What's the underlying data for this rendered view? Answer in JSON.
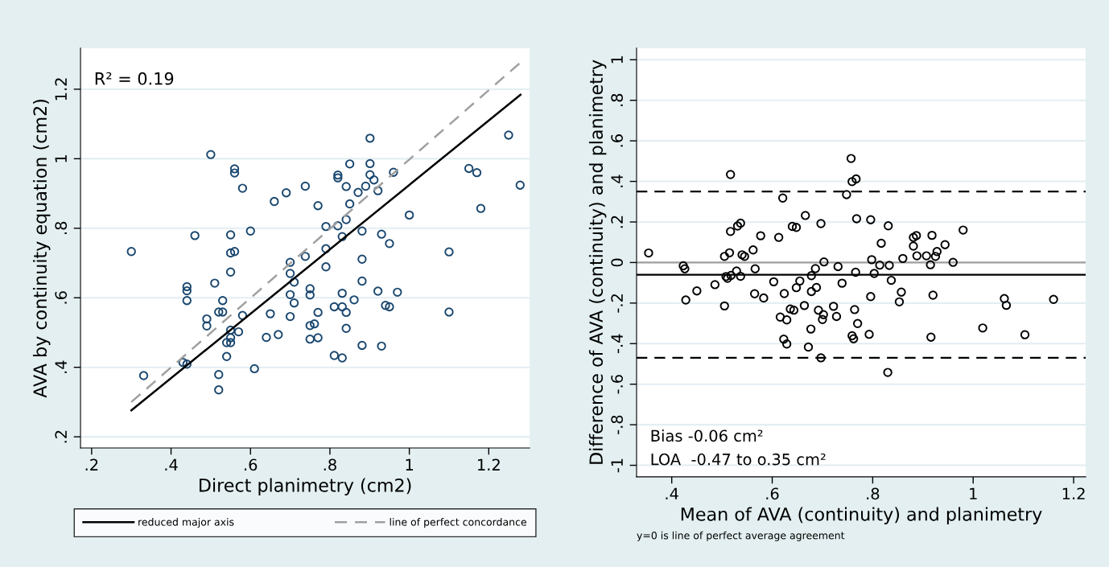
{
  "chart_data": [
    {
      "type": "scatter",
      "xlabel": "Direct planimetry (cm2)",
      "ylabel": "AVA by continuity equation (cm2)",
      "annotations": [
        "R² = 0.19"
      ],
      "xlim": [
        0.172,
        1.303
      ],
      "ylim": [
        0.168,
        1.318
      ],
      "xticks": [
        {
          "value": 0.2,
          "label": ".2"
        },
        {
          "value": 0.4,
          "label": ".4"
        },
        {
          "value": 0.6,
          "label": ".6"
        },
        {
          "value": 0.8,
          "label": ".8"
        },
        {
          "value": 1,
          "label": "1"
        },
        {
          "value": 1.2,
          "label": "1.2"
        }
      ],
      "yticks": [
        {
          "value": 0.2,
          "label": ".2"
        },
        {
          "value": 0.4,
          "label": ".4"
        },
        {
          "value": 0.6,
          "label": ".6"
        },
        {
          "value": 0.8,
          "label": ".8"
        },
        {
          "value": 1,
          "label": "1"
        },
        {
          "value": 1.2,
          "label": "1.2"
        }
      ],
      "grid": "y",
      "legend": "bottom",
      "series": [
        {
          "type": "scatter",
          "marker": "circle",
          "color": "#1a476f",
          "x": [
            0.3,
            0.331,
            0.43,
            0.44,
            0.44,
            0.44,
            0.44,
            0.46,
            0.49,
            0.49,
            0.5,
            0.51,
            0.52,
            0.52,
            0.52,
            0.53,
            0.53,
            0.54,
            0.54,
            0.55,
            0.55,
            0.55,
            0.55,
            0.55,
            0.55,
            0.56,
            0.56,
            0.56,
            0.57,
            0.58,
            0.58,
            0.6,
            0.61,
            0.64,
            0.65,
            0.66,
            0.67,
            0.69,
            0.7,
            0.7,
            0.71,
            0.7,
            0.71,
            0.7,
            0.738,
            0.738,
            0.75,
            0.75,
            0.75,
            0.75,
            0.761,
            0.77,
            0.77,
            0.77,
            0.79,
            0.79,
            0.79,
            0.811,
            0.811,
            0.82,
            0.82,
            0.82,
            0.831,
            0.831,
            0.831,
            0.831,
            0.841,
            0.841,
            0.841,
            0.841,
            0.85,
            0.85,
            0.861,
            0.871,
            0.881,
            0.881,
            0.881,
            0.881,
            0.89,
            0.901,
            0.901,
            0.901,
            0.911,
            0.921,
            0.921,
            0.93,
            0.93,
            0.94,
            0.95,
            0.95,
            0.96,
            0.97,
            1.0,
            1.1,
            1.1,
            1.15,
            1.17,
            1.18,
            1.25,
            1.279
          ],
          "values": [
            0.733,
            0.376,
            0.414,
            0.409,
            0.632,
            0.62,
            0.592,
            0.779,
            0.539,
            0.519,
            1.012,
            0.642,
            0.559,
            0.379,
            0.335,
            0.592,
            0.559,
            0.431,
            0.471,
            0.507,
            0.485,
            0.471,
            0.674,
            0.729,
            0.781,
            0.733,
            0.971,
            0.959,
            0.502,
            0.549,
            0.915,
            0.792,
            0.396,
            0.486,
            0.554,
            0.877,
            0.494,
            0.902,
            0.702,
            0.67,
            0.645,
            0.609,
            0.585,
            0.546,
            0.921,
            0.719,
            0.626,
            0.608,
            0.52,
            0.481,
            0.525,
            0.865,
            0.558,
            0.485,
            0.805,
            0.741,
            0.689,
            0.574,
            0.434,
            0.953,
            0.945,
            0.807,
            0.776,
            0.613,
            0.574,
            0.427,
            0.92,
            0.825,
            0.558,
            0.512,
            0.985,
            0.87,
            0.594,
            0.903,
            0.792,
            0.711,
            0.648,
            0.463,
            0.921,
            1.059,
            0.986,
            0.954,
            0.939,
            0.908,
            0.619,
            0.783,
            0.461,
            0.578,
            0.756,
            0.574,
            0.961,
            0.616,
            0.838,
            0.732,
            0.559,
            0.972,
            0.96,
            0.857,
            1.068,
            0.924
          ]
        },
        {
          "type": "line",
          "name": "reduced major axis",
          "color": "#000000",
          "line_style": "solid",
          "marker": "none",
          "x": [
            0.3,
            1.28
          ],
          "values": [
            0.276,
            1.184
          ]
        },
        {
          "type": "line",
          "name": "line of perfect concordance",
          "color": "#a0a0a0",
          "line_style": "dashed",
          "marker": "none",
          "x": [
            0.3,
            1.28
          ],
          "values": [
            0.3,
            1.277
          ]
        }
      ]
    },
    {
      "type": "scatter",
      "xlabel": "Mean of AVA (continuity) and planimetry",
      "ylabel": "Difference of AVA (continuity) and planimetry",
      "annotations": [
        "Bias -0.06 cm²",
        "LOA  -0.47 to o.35 cm²",
        "y=0 is line of perfect average agreement"
      ],
      "xlim": [
        0.33,
        1.224
      ],
      "ylim": [
        -1.057,
        1.057
      ],
      "xticks": [
        {
          "value": 0.4,
          "label": ".4"
        },
        {
          "value": 0.6,
          "label": ".6"
        },
        {
          "value": 0.8,
          "label": ".8"
        },
        {
          "value": 1,
          "label": "1"
        },
        {
          "value": 1.2,
          "label": "1.2"
        }
      ],
      "yticks": [
        {
          "value": -1,
          "label": "-1"
        },
        {
          "value": -0.8,
          "label": "-.8"
        },
        {
          "value": -0.6,
          "label": "-.6"
        },
        {
          "value": -0.4,
          "label": "-.4"
        },
        {
          "value": -0.2,
          "label": "-.2"
        },
        0,
        {
          "value": 0.2,
          "label": ".2"
        },
        {
          "value": 0.4,
          "label": ".4"
        },
        {
          "value": 0.6,
          "label": ".6"
        },
        {
          "value": 0.8,
          "label": ".8"
        },
        1
      ],
      "grid": "y",
      "ref_lines": [
        {
          "axis": "y",
          "value": 0,
          "label": null,
          "color": "#a0a0a0",
          "line_style": "solid"
        },
        {
          "axis": "y",
          "value": -0.06,
          "label": null,
          "color": "#000000",
          "line_style": "solid"
        },
        {
          "axis": "y",
          "value": 0.35,
          "label": null,
          "color": "#000000",
          "line_style": "dashed"
        },
        {
          "axis": "y",
          "value": -0.47,
          "label": null,
          "color": "#000000",
          "line_style": "dashed"
        }
      ],
      "series": [
        {
          "type": "scatter",
          "marker": "circle",
          "color": "#000000",
          "x": [
            0.354,
            0.423,
            0.426,
            0.428,
            0.45,
            0.486,
            0.505,
            0.505,
            0.508,
            0.511,
            0.515,
            0.517,
            0.517,
            0.518,
            0.529,
            0.531,
            0.537,
            0.537,
            0.54,
            0.545,
            0.562,
            0.565,
            0.566,
            0.577,
            0.583,
            0.603,
            0.613,
            0.616,
            0.621,
            0.624,
            0.623,
            0.629,
            0.629,
            0.636,
            0.64,
            0.643,
            0.648,
            0.648,
            0.655,
            0.664,
            0.666,
            0.672,
            0.677,
            0.678,
            0.678,
            0.686,
            0.688,
            0.692,
            0.697,
            0.697,
            0.7,
            0.702,
            0.703,
            0.722,
            0.728,
            0.731,
            0.739,
            0.748,
            0.757,
            0.759,
            0.767,
            0.768,
            0.766,
            0.764,
            0.77,
            0.759,
            0.762,
            0.796,
            0.798,
            0.796,
            0.793,
            0.814,
            0.817,
            0.831,
            0.83,
            0.833,
            0.803,
            0.837,
            0.853,
            0.857,
            0.86,
            0.881,
            0.881,
            0.887,
            0.888,
            0.907,
            0.915,
            0.918,
            0.92,
            0.916,
            0.925,
            0.928,
            0.944,
            0.96,
            0.98,
            1.019,
            1.062,
            1.066,
            1.103,
            1.16
          ],
          "values": [
            0.047,
            -0.016,
            -0.031,
            -0.185,
            -0.14,
            -0.109,
            -0.214,
            0.03,
            -0.069,
            -0.078,
            0.048,
            0.434,
            0.153,
            -0.064,
            -0.042,
            0.18,
            0.194,
            -0.068,
            0.038,
            0.03,
            0.062,
            -0.154,
            -0.031,
            0.132,
            -0.175,
            -0.095,
            0.124,
            -0.269,
            0.318,
            -0.153,
            -0.378,
            -0.283,
            -0.402,
            -0.229,
            0.178,
            -0.235,
            0.173,
            -0.124,
            -0.091,
            -0.212,
            0.232,
            -0.417,
            -0.328,
            -0.143,
            -0.065,
            -0.03,
            -0.123,
            -0.235,
            -0.47,
            0.192,
            -0.281,
            -0.257,
            0.003,
            -0.216,
            -0.266,
            -0.02,
            -0.102,
            0.335,
            0.513,
            0.399,
            0.412,
            0.216,
            -0.048,
            -0.232,
            -0.301,
            -0.361,
            -0.376,
            0.211,
            0.014,
            -0.168,
            -0.354,
            -0.013,
            0.095,
            0.181,
            -0.542,
            -0.014,
            -0.054,
            -0.088,
            -0.194,
            -0.146,
            0.02,
            0.081,
            0.124,
            0.133,
            0.033,
            0.033,
            -0.011,
            0.134,
            -0.161,
            -0.368,
            0.03,
            0.054,
            0.088,
            0.001,
            0.16,
            -0.323,
            -0.178,
            -0.211,
            -0.356,
            -0.182
          ]
        }
      ]
    }
  ]
}
